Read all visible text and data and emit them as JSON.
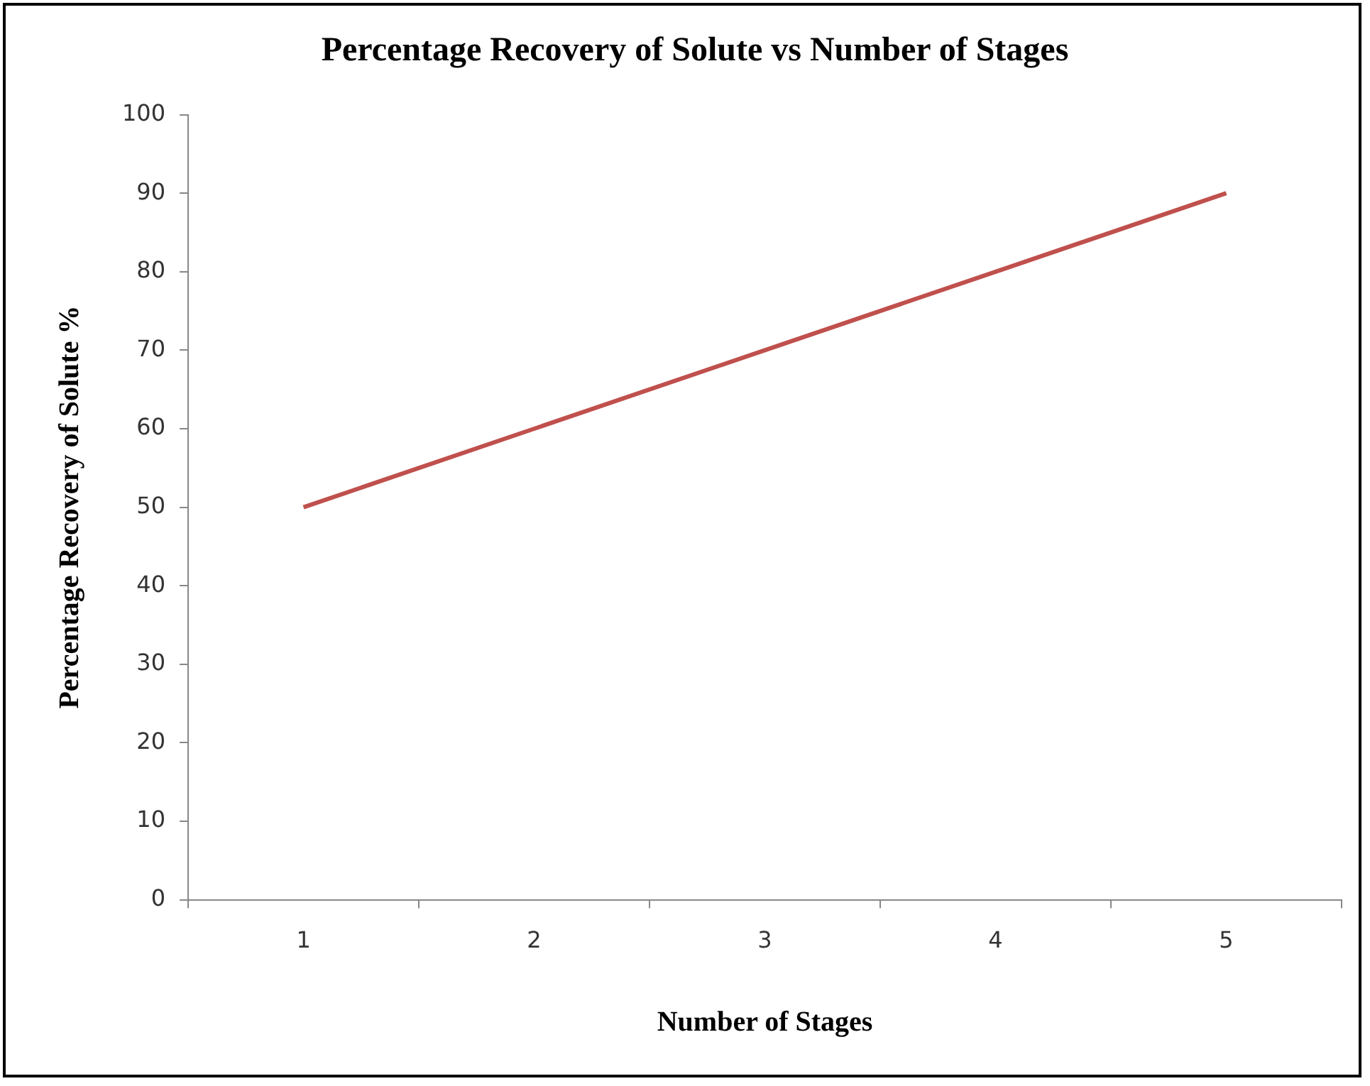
{
  "chart_data": {
    "type": "line",
    "title": "Percentage Recovery of Solute vs Number of Stages",
    "xlabel": "Number of Stages",
    "ylabel": "Percentage Recovery of Solute %",
    "categories": [
      "1",
      "2",
      "3",
      "4",
      "5"
    ],
    "series": [
      {
        "color": "#c0504d",
        "values": [
          50,
          60,
          70,
          80,
          90
        ]
      }
    ],
    "ylim": [
      0,
      100
    ],
    "yticks": [
      0,
      10,
      20,
      30,
      40,
      50,
      60,
      70,
      80,
      90,
      100
    ],
    "grid": false,
    "legend": false,
    "marker": "none",
    "line_style": "solid"
  }
}
